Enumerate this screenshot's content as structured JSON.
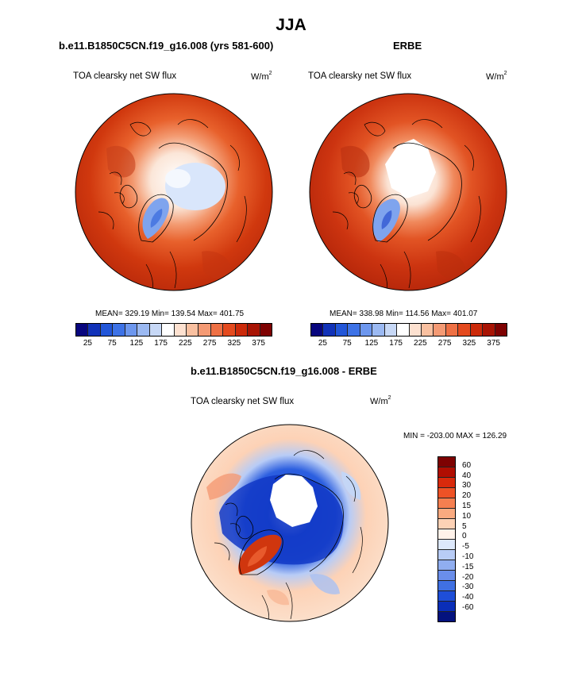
{
  "figure": {
    "title": "JJA",
    "panels": [
      {
        "subtitle": "b.e11.B1850C5CN.f19_g16.008 (yrs 581-600)",
        "variable_label": "TOA clearsky net SW flux",
        "units_base": "W/m",
        "units_exp": "2",
        "stats": "MEAN= 329.19  Min= 139.54  Max= 401.75"
      },
      {
        "subtitle": "ERBE",
        "variable_label": "TOA clearsky net SW flux",
        "units_base": "W/m",
        "units_exp": "2",
        "stats": "MEAN= 338.98  Min= 114.56  Max= 401.07"
      },
      {
        "subtitle": "b.e11.B1850C5CN.f19_g16.008 - ERBE",
        "variable_label": "TOA clearsky net SW flux",
        "units_base": "W/m",
        "units_exp": "2",
        "stats": "MIN = -203.00 MAX = 126.29"
      }
    ],
    "abs_colorbar": {
      "colors": [
        "#08067e",
        "#1132b8",
        "#2256d8",
        "#3d72e6",
        "#6d97ee",
        "#9bb9f2",
        "#c7d8f6",
        "#ffffff",
        "#fde1d0",
        "#f9c0a0",
        "#f49a74",
        "#ee7044",
        "#e44a1e",
        "#cc2a0a",
        "#a81404",
        "#7e0202"
      ],
      "ticks": [
        "25",
        "75",
        "125",
        "175",
        "225",
        "275",
        "325",
        "375"
      ]
    },
    "diff_colorbar": {
      "colors": [
        "#7e0202",
        "#b00e02",
        "#d82a0c",
        "#ee5226",
        "#f57f50",
        "#f9aa80",
        "#fdd2b6",
        "#fff2ea",
        "#dde8fb",
        "#b8ccf6",
        "#90aef0",
        "#6a8eea",
        "#4070e2",
        "#1e4ed8",
        "#0a2eb8",
        "#04127e"
      ],
      "ticks": [
        "60",
        "40",
        "30",
        "20",
        "15",
        "10",
        "5",
        "0",
        "-5",
        "-10",
        "-15",
        "-20",
        "-30",
        "-40",
        "-60"
      ]
    }
  }
}
